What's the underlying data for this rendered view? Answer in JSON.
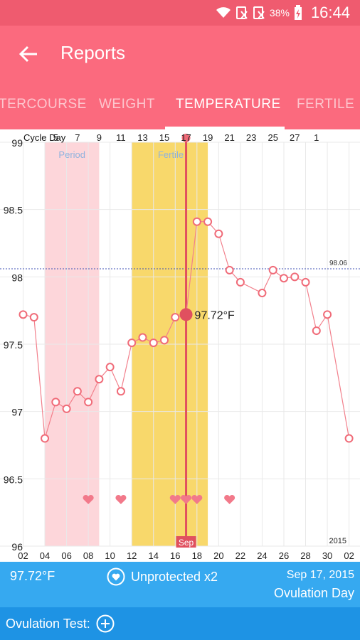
{
  "status_bar": {
    "battery": "38%",
    "time": "16:44"
  },
  "app_bar": {
    "title": "Reports"
  },
  "tabs": [
    "TERCOURSE",
    "WEIGHT",
    "TEMPERATURE",
    "FERTILE"
  ],
  "active_tab": "TEMPERATURE",
  "colors": {
    "accent": "#fb6a7e",
    "line": "#f2808c",
    "period_band": "#fdd6da",
    "fertile_band": "#f8d86b",
    "footer": "#36a9f0",
    "avg_line": "#3f51b5"
  },
  "chart_data": {
    "type": "line",
    "x_label": "Cycle Day",
    "cycle_day_ticks": [
      "5",
      "7",
      "9",
      "11",
      "13",
      "15",
      "17",
      "19",
      "21",
      "23",
      "25",
      "27",
      "1"
    ],
    "date_ticks": [
      "02",
      "04",
      "06",
      "08",
      "10",
      "12",
      "14",
      "16",
      "18",
      "20",
      "22",
      "24",
      "26",
      "28",
      "30",
      "02"
    ],
    "y_ticks": [
      "99",
      "98.5",
      "98",
      "97.5",
      "97",
      "96.5",
      "96"
    ],
    "ylim": [
      96,
      99
    ],
    "year_label": "2015",
    "month_label": "Sep",
    "period_label": "Period",
    "fertile_label": "Fertile",
    "period_range_day": [
      4,
      9
    ],
    "fertile_range_day": [
      12,
      19
    ],
    "average": {
      "value": 98.06,
      "label": "98.06"
    },
    "selected": {
      "day": 17,
      "value": 97.72,
      "label": "97.72°F"
    },
    "points": [
      {
        "day": 2,
        "value": 97.72
      },
      {
        "day": 3,
        "value": 97.7
      },
      {
        "day": 4,
        "value": 96.8
      },
      {
        "day": 5,
        "value": 97.07
      },
      {
        "day": 6,
        "value": 97.02
      },
      {
        "day": 7,
        "value": 97.15
      },
      {
        "day": 8,
        "value": 97.07
      },
      {
        "day": 9,
        "value": 97.24
      },
      {
        "day": 10,
        "value": 97.33
      },
      {
        "day": 11,
        "value": 97.15
      },
      {
        "day": 12,
        "value": 97.51
      },
      {
        "day": 13,
        "value": 97.55
      },
      {
        "day": 14,
        "value": 97.51
      },
      {
        "day": 15,
        "value": 97.53
      },
      {
        "day": 16,
        "value": 97.7
      },
      {
        "day": 17,
        "value": 97.72
      },
      {
        "day": 18,
        "value": 98.41
      },
      {
        "day": 19,
        "value": 98.41
      },
      {
        "day": 20,
        "value": 98.32
      },
      {
        "day": 21,
        "value": 98.05
      },
      {
        "day": 22,
        "value": 97.96
      },
      {
        "day": 24,
        "value": 97.88
      },
      {
        "day": 25,
        "value": 98.05
      },
      {
        "day": 26,
        "value": 97.99
      },
      {
        "day": 27,
        "value": 98.0
      },
      {
        "day": 28,
        "value": 97.96
      },
      {
        "day": 29,
        "value": 97.6
      },
      {
        "day": 30,
        "value": 97.72
      },
      {
        "day": 32,
        "value": 96.8
      }
    ],
    "intercourse_days": [
      8,
      11,
      16,
      17,
      18,
      21
    ]
  },
  "footer": {
    "temperature": "97.72°F",
    "unprotected": "Unprotected x2",
    "date": "Sep 17, 2015",
    "day_type": "Ovulation Day",
    "ovulation_test_label": "Ovulation Test:"
  }
}
